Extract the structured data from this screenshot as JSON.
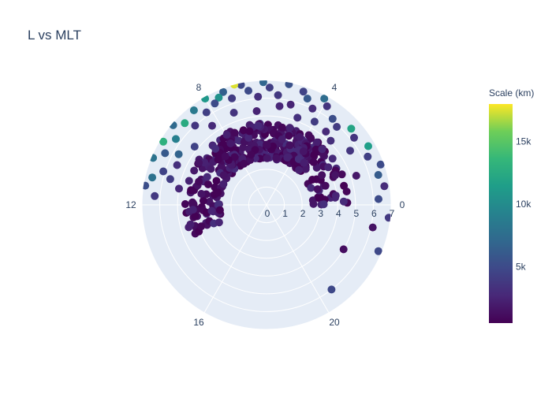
{
  "chart_data": {
    "type": "scatter",
    "subtype": "polar",
    "title": "L vs MLT",
    "angular_axis": {
      "variable": "MLT",
      "direction": "counterclockwise",
      "rotation_deg": 0,
      "period": 24,
      "tick_values": [
        0,
        4,
        8,
        12,
        16,
        20
      ],
      "tick_labels": [
        "0",
        "4",
        "8",
        "12",
        "16",
        "20"
      ]
    },
    "radial_axis": {
      "variable": "L",
      "range": [
        0,
        7
      ],
      "tick_values": [
        0,
        1,
        2,
        3,
        4,
        5,
        6,
        7
      ],
      "tick_labels": [
        "0",
        "1",
        "2",
        "3",
        "4",
        "5",
        "6",
        "7"
      ],
      "label_angle_deg": 0
    },
    "colorbar": {
      "title": "Scale (km)",
      "colorscale": "Viridis",
      "range": [
        500,
        18000
      ],
      "tick_values": [
        5000,
        10000,
        15000
      ],
      "tick_labels": [
        "5k",
        "10k",
        "15k"
      ]
    },
    "background": "#e5ecf6",
    "grid": true,
    "series": [
      {
        "marker": "circle",
        "points": [
          {
            "mlt": 3.2,
            "r": 5.9,
            "c": 4000
          },
          {
            "mlt": 3.5,
            "r": 6.1,
            "c": 5200
          },
          {
            "mlt": 3.9,
            "r": 6.5,
            "c": 3500
          },
          {
            "mlt": 4.1,
            "r": 6.8,
            "c": 7500
          },
          {
            "mlt": 4.3,
            "r": 6.0,
            "c": 3000
          },
          {
            "mlt": 4.6,
            "r": 6.4,
            "c": 6000
          },
          {
            "mlt": 4.8,
            "r": 6.7,
            "c": 4500
          },
          {
            "mlt": 5.1,
            "r": 5.8,
            "c": 2500
          },
          {
            "mlt": 5.3,
            "r": 6.9,
            "c": 5500
          },
          {
            "mlt": 5.6,
            "r": 6.2,
            "c": 3800
          },
          {
            "mlt": 5.9,
            "r": 6.6,
            "c": 4200
          },
          {
            "mlt": 6.1,
            "r": 6.9,
            "c": 7000
          },
          {
            "mlt": 6.3,
            "r": 6.1,
            "c": 3200
          },
          {
            "mlt": 6.6,
            "r": 6.5,
            "c": 5000
          },
          {
            "mlt": 6.8,
            "r": 6.9,
            "c": 4800
          },
          {
            "mlt": 7.0,
            "r": 7.0,
            "c": 17500
          },
          {
            "mlt": 7.2,
            "r": 6.3,
            "c": 4000
          },
          {
            "mlt": 7.4,
            "r": 6.8,
            "c": 6500
          },
          {
            "mlt": 7.6,
            "r": 6.6,
            "c": 10500
          },
          {
            "mlt": 7.8,
            "r": 6.4,
            "c": 5000
          },
          {
            "mlt": 8.0,
            "r": 6.9,
            "c": 11000
          },
          {
            "mlt": 8.2,
            "r": 6.2,
            "c": 4200
          },
          {
            "mlt": 8.5,
            "r": 6.7,
            "c": 8500
          },
          {
            "mlt": 8.8,
            "r": 6.0,
            "c": 3600
          },
          {
            "mlt": 9.0,
            "r": 6.5,
            "c": 12500
          },
          {
            "mlt": 9.3,
            "r": 6.9,
            "c": 7200
          },
          {
            "mlt": 9.6,
            "r": 6.3,
            "c": 9000
          },
          {
            "mlt": 9.9,
            "r": 6.8,
            "c": 13000
          },
          {
            "mlt": 10.2,
            "r": 6.4,
            "c": 6000
          },
          {
            "mlt": 10.5,
            "r": 6.9,
            "c": 8000
          },
          {
            "mlt": 10.8,
            "r": 6.1,
            "c": 4500
          },
          {
            "mlt": 11.1,
            "r": 6.6,
            "c": 7800
          },
          {
            "mlt": 11.4,
            "r": 6.9,
            "c": 5200
          },
          {
            "mlt": 11.7,
            "r": 6.3,
            "c": 3800
          },
          {
            "mlt": 2.8,
            "r": 6.4,
            "c": 12000
          },
          {
            "mlt": 2.5,
            "r": 6.2,
            "c": 3500
          },
          {
            "mlt": 2.0,
            "r": 6.6,
            "c": 11500
          },
          {
            "mlt": 1.7,
            "r": 6.3,
            "c": 4200
          },
          {
            "mlt": 1.3,
            "r": 6.8,
            "c": 5000
          },
          {
            "mlt": 1.0,
            "r": 6.5,
            "c": 6200
          },
          {
            "mlt": 0.6,
            "r": 6.7,
            "c": 3000
          },
          {
            "mlt": 0.2,
            "r": 6.3,
            "c": 5000
          },
          {
            "mlt": 23.6,
            "r": 6.9,
            "c": 3800
          },
          {
            "mlt": 23.2,
            "r": 6.1,
            "c": 1500
          },
          {
            "mlt": 22.5,
            "r": 6.8,
            "c": 4800
          },
          {
            "mlt": 3.0,
            "r": 5.1,
            "c": 3200
          },
          {
            "mlt": 3.4,
            "r": 5.3,
            "c": 2800
          },
          {
            "mlt": 4.0,
            "r": 5.4,
            "c": 4000
          },
          {
            "mlt": 4.7,
            "r": 5.2,
            "c": 3300
          },
          {
            "mlt": 5.5,
            "r": 5.6,
            "c": 2600
          },
          {
            "mlt": 6.4,
            "r": 5.3,
            "c": 2400
          },
          {
            "mlt": 7.3,
            "r": 5.5,
            "c": 3500
          },
          {
            "mlt": 8.3,
            "r": 5.4,
            "c": 2800
          },
          {
            "mlt": 9.4,
            "r": 5.2,
            "c": 4500
          },
          {
            "mlt": 10.4,
            "r": 5.5,
            "c": 3200
          },
          {
            "mlt": 11.3,
            "r": 5.0,
            "c": 2700
          },
          {
            "mlt": 11.0,
            "r": 5.6,
            "c": 4100
          },
          {
            "mlt": 10.0,
            "r": 5.7,
            "c": 6800
          },
          {
            "mlt": 2.2,
            "r": 5.6,
            "c": 3600
          },
          {
            "mlt": 1.2,
            "r": 5.3,
            "c": 1800
          },
          {
            "mlt": 22.0,
            "r": 5.0,
            "c": 1200
          },
          {
            "mlt": 20.5,
            "r": 6.0,
            "c": 4800
          }
        ],
        "cluster": {
          "mlt_range": [
            0.0,
            13.5
          ],
          "r_range": [
            2.6,
            4.6
          ],
          "peak_mlt": 6.0,
          "n_points": 420,
          "color_range": [
            500,
            3200
          ]
        }
      }
    ]
  }
}
